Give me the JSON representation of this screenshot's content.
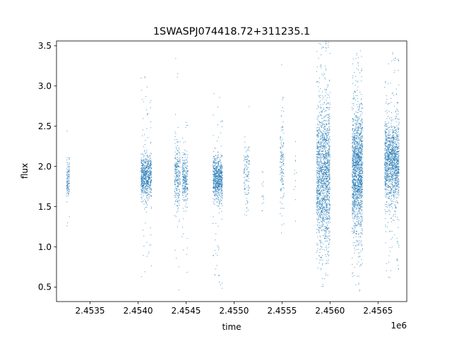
{
  "chart_data": {
    "type": "scatter",
    "title": "1SWASPJ074418.72+311235.1",
    "xlabel": "time",
    "ylabel": "flux",
    "x_offset_label": "1e6",
    "xlim": [
      2453150,
      2456800
    ],
    "ylim": [
      0.32,
      3.56
    ],
    "x_ticks": [
      2453500,
      2454000,
      2454500,
      2455000,
      2455500,
      2456000,
      2456500
    ],
    "x_tick_labels": [
      "2.4535",
      "2.4540",
      "2.4545",
      "2.4550",
      "2.4555",
      "2.4560",
      "2.4565"
    ],
    "y_ticks": [
      0.5,
      1.0,
      1.5,
      2.0,
      2.5,
      3.0,
      3.5
    ],
    "y_tick_labels": [
      "0.5",
      "1.0",
      "1.5",
      "2.0",
      "2.5",
      "3.0",
      "3.5"
    ],
    "grid": false,
    "marker_color": "#1f77b4",
    "clusters": [
      {
        "x_start": 2453255,
        "x_end": 2453285,
        "median_flux": 1.85,
        "spread": 0.12,
        "min_flux": 1.2,
        "max_flux": 2.45,
        "points": 120
      },
      {
        "x_start": 2454030,
        "x_end": 2454140,
        "median_flux": 1.87,
        "spread": 0.13,
        "min_flux": 0.62,
        "max_flux": 3.12,
        "points": 700
      },
      {
        "x_start": 2454380,
        "x_end": 2454440,
        "median_flux": 1.9,
        "spread": 0.2,
        "min_flux": 0.45,
        "max_flux": 3.45,
        "points": 260
      },
      {
        "x_start": 2454460,
        "x_end": 2454520,
        "median_flux": 1.85,
        "spread": 0.15,
        "min_flux": 0.65,
        "max_flux": 2.6,
        "points": 260
      },
      {
        "x_start": 2454780,
        "x_end": 2454880,
        "median_flux": 1.85,
        "spread": 0.14,
        "min_flux": 0.45,
        "max_flux": 2.95,
        "points": 700
      },
      {
        "x_start": 2455100,
        "x_end": 2455160,
        "median_flux": 1.9,
        "spread": 0.2,
        "min_flux": 1.2,
        "max_flux": 2.85,
        "points": 120
      },
      {
        "x_start": 2455290,
        "x_end": 2455310,
        "median_flux": 1.75,
        "spread": 0.25,
        "min_flux": 1.45,
        "max_flux": 2.8,
        "points": 14
      },
      {
        "x_start": 2455480,
        "x_end": 2455520,
        "median_flux": 2.0,
        "spread": 0.3,
        "min_flux": 1.15,
        "max_flux": 3.38,
        "points": 140
      },
      {
        "x_start": 2455620,
        "x_end": 2455650,
        "median_flux": 1.85,
        "spread": 0.25,
        "min_flux": 1.1,
        "max_flux": 2.35,
        "points": 12
      },
      {
        "x_start": 2455860,
        "x_end": 2456000,
        "median_flux": 1.9,
        "spread": 0.45,
        "min_flux": 0.45,
        "max_flux": 3.55,
        "points": 1600
      },
      {
        "x_start": 2456230,
        "x_end": 2456340,
        "median_flux": 1.95,
        "spread": 0.38,
        "min_flux": 0.45,
        "max_flux": 3.5,
        "points": 1600
      },
      {
        "x_start": 2456570,
        "x_end": 2456720,
        "median_flux": 2.05,
        "spread": 0.25,
        "min_flux": 0.52,
        "max_flux": 3.45,
        "points": 1400
      }
    ]
  }
}
